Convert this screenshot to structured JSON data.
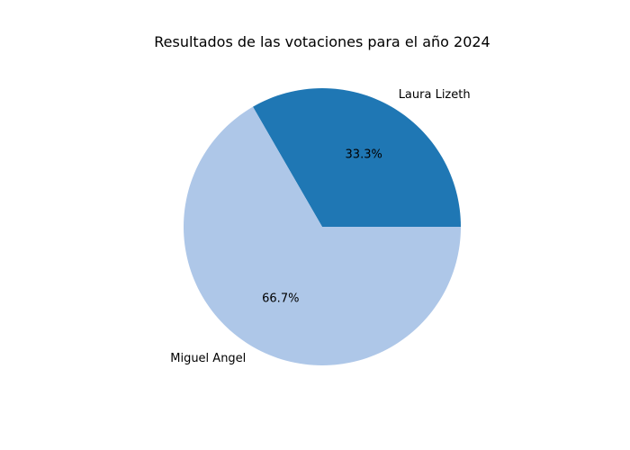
{
  "chart_data": {
    "type": "pie",
    "title": "Resultados de las votaciones para el año 2024",
    "labels": [
      "Laura Lizeth",
      "Miguel Angel"
    ],
    "values": [
      1,
      2
    ],
    "percent_labels": [
      "33.3%",
      "66.7%"
    ],
    "colors": [
      "#1f77b4",
      "#aec7e8"
    ],
    "start_angle_deg": 0,
    "direction": "counterclockwise",
    "legend": "none"
  }
}
